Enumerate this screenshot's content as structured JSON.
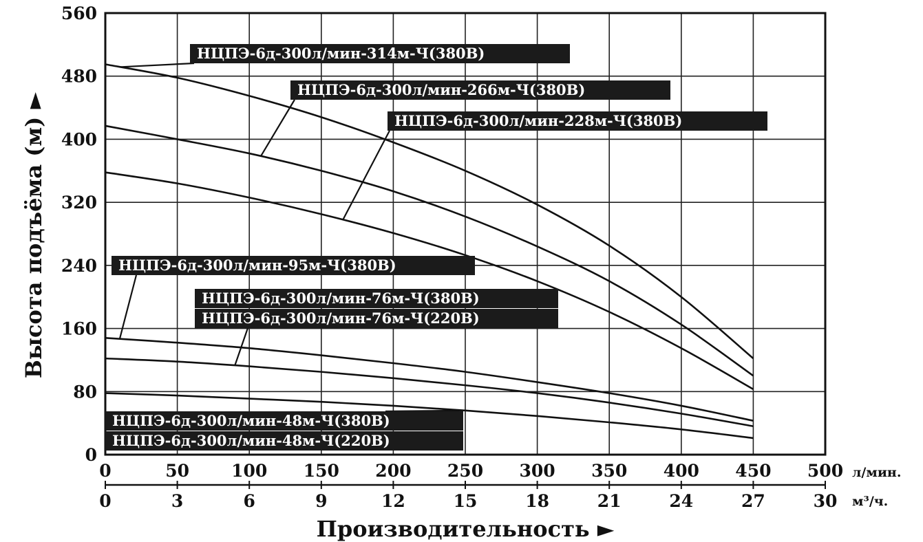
{
  "chart_data": {
    "type": "line",
    "title": "",
    "xlabel": "Производительность ►",
    "ylabel": "Высота подъёма (м) ►",
    "x_unit_primary": "л/мин.",
    "x_unit_secondary": "м³/ч.",
    "xlim": [
      0,
      500
    ],
    "ylim": [
      0,
      560
    ],
    "x_ticks": [
      0,
      50,
      100,
      150,
      200,
      250,
      300,
      350,
      400,
      450,
      500
    ],
    "x2_ticks": [
      0,
      3,
      6,
      9,
      12,
      15,
      18,
      21,
      24,
      27,
      30
    ],
    "y_ticks": [
      0,
      80,
      160,
      240,
      320,
      400,
      480,
      560
    ],
    "grid": true,
    "x": [
      0,
      50,
      100,
      150,
      200,
      250,
      300,
      350,
      400,
      450
    ],
    "series": [
      {
        "name": "НЦПЭ-6д-300л/мин-314м-Ч(380В)",
        "values": [
          495,
          478,
          455,
          428,
          396,
          360,
          317,
          265,
          200,
          122
        ]
      },
      {
        "name": "НЦПЭ-6д-300л/мин-266м-Ч(380В)",
        "values": [
          417,
          400,
          382,
          360,
          334,
          302,
          264,
          220,
          165,
          100
        ]
      },
      {
        "name": "НЦПЭ-6д-300л/мин-228м-Ч(380В)",
        "values": [
          358,
          344,
          326,
          305,
          281,
          253,
          220,
          181,
          135,
          83
        ]
      },
      {
        "name": "НЦПЭ-6д-300л/мин-95м-Ч(380В)",
        "values": [
          148,
          142,
          135,
          126,
          116,
          105,
          92,
          78,
          62,
          43
        ]
      },
      {
        "name": "НЦПЭ-6д-300л/мин-76м-Ч(380В)",
        "values": [
          122,
          118,
          112,
          105,
          97,
          88,
          78,
          66,
          52,
          36
        ]
      },
      {
        "name": "НЦПЭ-6д-300л/мин-48м-Ч(380В)",
        "values": [
          78,
          75,
          71,
          67,
          62,
          56,
          49,
          41,
          32,
          21
        ]
      }
    ],
    "labels": [
      {
        "text": "НЦПЭ-6д-300л/мин-314м-Ч(380В)",
        "series": 0,
        "x_at": 10
      },
      {
        "text": "НЦПЭ-6д-300л/мин-266м-Ч(380В)",
        "series": 1,
        "x_at": 108
      },
      {
        "text": "НЦПЭ-6д-300л/мин-228м-Ч(380В)",
        "series": 2,
        "x_at": 165
      },
      {
        "text": "НЦПЭ-6д-300л/мин-95м-Ч(380В)",
        "series": 3,
        "x_at": 10
      },
      {
        "text": "НЦПЭ-6д-300л/мин-76м-Ч(380В)",
        "series": 4,
        "x_at": 90
      },
      {
        "text": "НЦПЭ-6д-300л/мин-76м-Ч(220В)",
        "series": 4,
        "x_at": 90
      },
      {
        "text": "НЦПЭ-6д-300л/мин-48м-Ч(380В)",
        "series": 5,
        "x_at": 250
      },
      {
        "text": "НЦПЭ-6д-300л/мин-48м-Ч(220В)",
        "series": 5,
        "x_at": 250
      }
    ]
  }
}
